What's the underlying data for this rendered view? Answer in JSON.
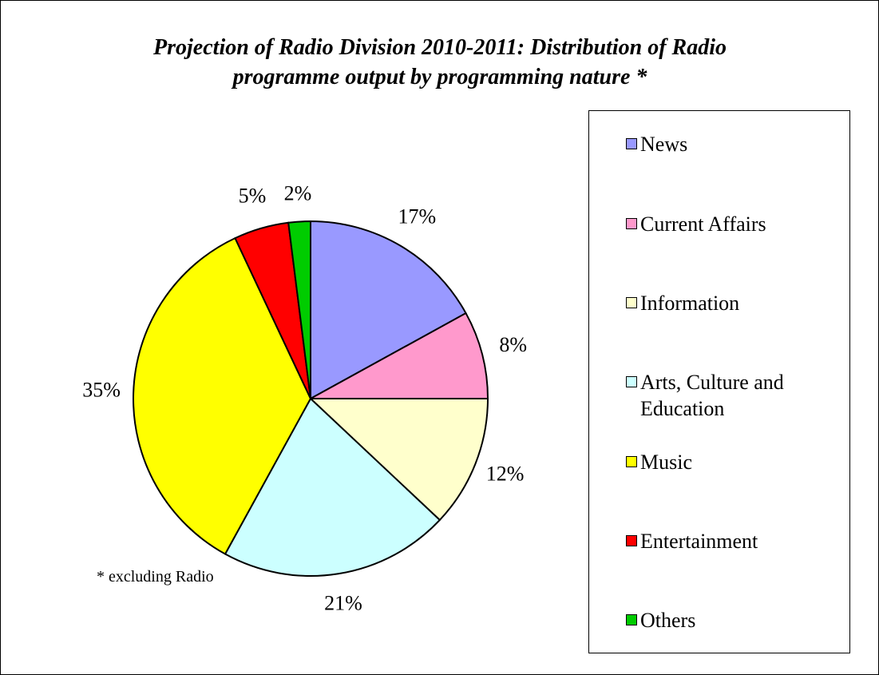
{
  "chart_data": {
    "type": "pie",
    "title": "Projection of Radio Division 2010-2011: Distribution of Radio\nprogramme output by programming nature *",
    "footnote": "* excluding Radio",
    "legend_position": "right",
    "slices": [
      {
        "name": "News",
        "value": 17,
        "label": "17%",
        "color": "#9999ff"
      },
      {
        "name": "Current Affairs",
        "value": 8,
        "label": "8%",
        "color": "#ff99cc"
      },
      {
        "name": "Information",
        "value": 12,
        "label": "12%",
        "color": "#ffffcc"
      },
      {
        "name": "Arts, Culture and Education",
        "value": 21,
        "label": "21%",
        "color": "#ccffff"
      },
      {
        "name": "Music",
        "value": 35,
        "label": "35%",
        "color": "#ffff00"
      },
      {
        "name": "Entertainment",
        "value": 5,
        "label": "5%",
        "color": "#ff0000"
      },
      {
        "name": "Others",
        "value": 2,
        "label": "2%",
        "color": "#00cc00"
      }
    ]
  }
}
